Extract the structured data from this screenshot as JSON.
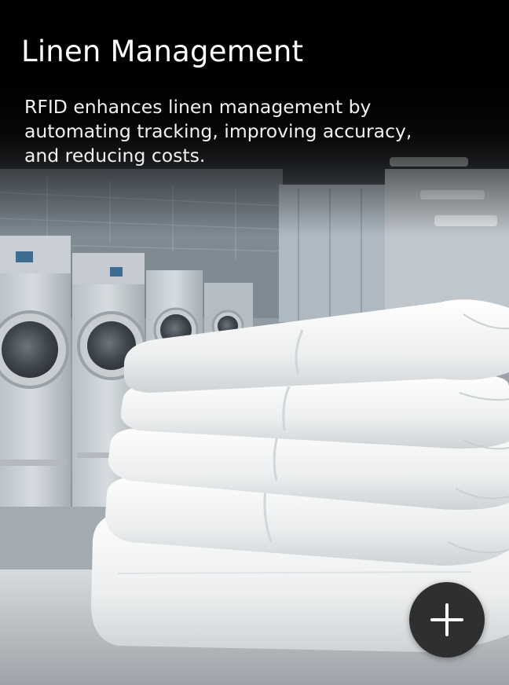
{
  "card": {
    "title": "Linen Management",
    "description": "RFID enhances linen management by automating tracking, improving accuracy, and reducing costs.",
    "image_icon": "photo-laundry-room-folded-linens",
    "action_icon": "plus-icon"
  },
  "colors": {
    "text": "#ffffff",
    "button_bg": "#2f2f2f",
    "button_icon": "#ffffff"
  }
}
